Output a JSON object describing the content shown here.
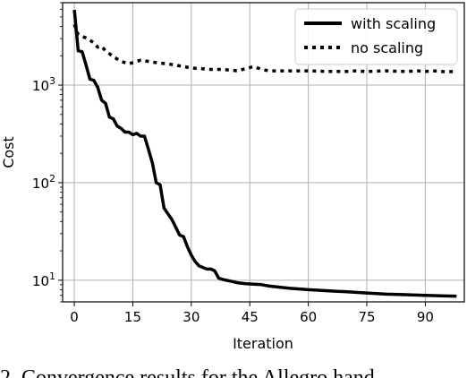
{
  "chart_data": {
    "type": "line",
    "xlabel": "Iteration",
    "ylabel": "Cost",
    "xlim": [
      -3,
      100
    ],
    "ylim": [
      6.0,
      7000
    ],
    "yscale": "log",
    "grid": true,
    "legend": "top-right",
    "x_ticks": [
      "0",
      "15",
      "30",
      "45",
      "60",
      "75",
      "90"
    ],
    "y_ticks": [
      {
        "base": "10",
        "exp": "1",
        "value": 10
      },
      {
        "base": "10",
        "exp": "2",
        "value": 100
      },
      {
        "base": "10",
        "exp": "3",
        "value": 1000
      }
    ],
    "series": [
      {
        "name": "with scaling",
        "style": "solid",
        "color": "#000000",
        "points": [
          [
            0,
            5900
          ],
          [
            1,
            2250
          ],
          [
            2,
            2200
          ],
          [
            3,
            1600
          ],
          [
            4,
            1150
          ],
          [
            5,
            1120
          ],
          [
            6,
            950
          ],
          [
            7,
            700
          ],
          [
            8,
            650
          ],
          [
            9,
            470
          ],
          [
            10,
            450
          ],
          [
            11,
            380
          ],
          [
            12,
            360
          ],
          [
            13,
            330
          ],
          [
            14,
            330
          ],
          [
            15,
            310
          ],
          [
            16,
            320
          ],
          [
            17,
            300
          ],
          [
            18,
            300
          ],
          [
            19,
            220
          ],
          [
            20,
            160
          ],
          [
            21,
            100
          ],
          [
            22,
            95
          ],
          [
            23,
            55
          ],
          [
            24,
            48
          ],
          [
            25,
            42
          ],
          [
            26,
            35
          ],
          [
            27,
            29
          ],
          [
            28,
            28
          ],
          [
            29,
            22
          ],
          [
            30,
            18
          ],
          [
            31,
            15.5
          ],
          [
            32,
            14
          ],
          [
            33,
            13.5
          ],
          [
            34,
            13
          ],
          [
            35,
            13
          ],
          [
            36,
            12.5
          ],
          [
            37,
            10.5
          ],
          [
            38,
            10.2
          ],
          [
            40,
            9.8
          ],
          [
            42,
            9.4
          ],
          [
            44,
            9.2
          ],
          [
            46,
            9.1
          ],
          [
            48,
            9.0
          ],
          [
            50,
            8.7
          ],
          [
            55,
            8.3
          ],
          [
            60,
            8.0
          ],
          [
            65,
            7.8
          ],
          [
            70,
            7.6
          ],
          [
            75,
            7.4
          ],
          [
            80,
            7.2
          ],
          [
            85,
            7.1
          ],
          [
            90,
            7.0
          ],
          [
            95,
            6.9
          ],
          [
            98,
            6.85
          ]
        ]
      },
      {
        "name": "no scaling",
        "style": "dotted",
        "color": "#000000",
        "points": [
          [
            0,
            4200
          ],
          [
            1,
            3300
          ],
          [
            2,
            3150
          ],
          [
            3,
            3050
          ],
          [
            4,
            2900
          ],
          [
            5,
            2700
          ],
          [
            6,
            2450
          ],
          [
            7,
            2500
          ],
          [
            8,
            2250
          ],
          [
            9,
            2100
          ],
          [
            10,
            1950
          ],
          [
            11,
            1850
          ],
          [
            12,
            1750
          ],
          [
            13,
            1700
          ],
          [
            14,
            1650
          ],
          [
            15,
            1700
          ],
          [
            16,
            1750
          ],
          [
            17,
            1800
          ],
          [
            18,
            1780
          ],
          [
            19,
            1750
          ],
          [
            20,
            1720
          ],
          [
            22,
            1680
          ],
          [
            24,
            1650
          ],
          [
            26,
            1600
          ],
          [
            28,
            1550
          ],
          [
            30,
            1500
          ],
          [
            32,
            1480
          ],
          [
            35,
            1450
          ],
          [
            38,
            1450
          ],
          [
            40,
            1420
          ],
          [
            42,
            1400
          ],
          [
            44,
            1480
          ],
          [
            46,
            1550
          ],
          [
            48,
            1450
          ],
          [
            50,
            1400
          ],
          [
            55,
            1400
          ],
          [
            60,
            1400
          ],
          [
            65,
            1380
          ],
          [
            70,
            1380
          ],
          [
            72,
            1400
          ],
          [
            75,
            1380
          ],
          [
            80,
            1400
          ],
          [
            85,
            1380
          ],
          [
            88,
            1400
          ],
          [
            90,
            1380
          ],
          [
            92,
            1400
          ],
          [
            95,
            1370
          ],
          [
            98,
            1380
          ]
        ]
      }
    ]
  },
  "caption": "2.  Convergence results for the Allegro hand..."
}
